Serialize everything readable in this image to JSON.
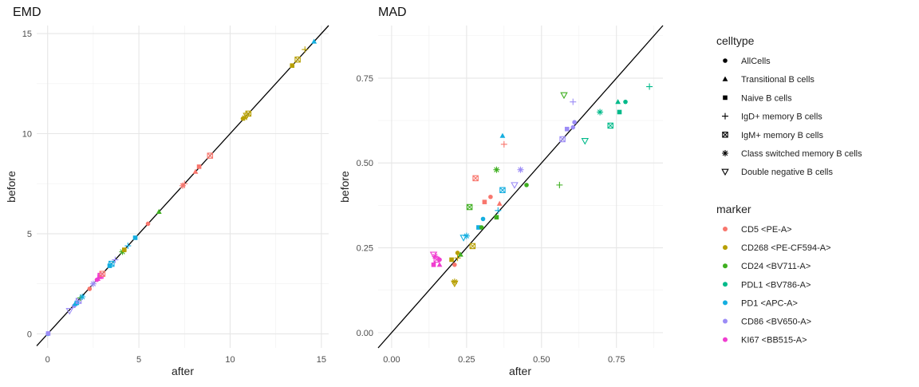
{
  "colors": {
    "CD5 <PE-A>": "#F8766D",
    "CD268 <PE-CF594-A>": "#B79F00",
    "CD24 <BV711-A>": "#3EAF1F",
    "PDL1 <BV786-A>": "#00BA8A",
    "PD1 <APC-A>": "#14AEE0",
    "CD86 <BV650-A>": "#9C8CF6",
    "KI67 <BB515-A>": "#F03ED0"
  },
  "legend": {
    "celltype_title": "celltype",
    "celltypes": [
      {
        "label": "AllCells",
        "shape": "circle"
      },
      {
        "label": "Transitional B cells",
        "shape": "triangle"
      },
      {
        "label": "Naive B cells",
        "shape": "square"
      },
      {
        "label": "IgD+ memory B cells",
        "shape": "plus"
      },
      {
        "label": "IgM+ memory B cells",
        "shape": "boxx"
      },
      {
        "label": "Class switched memory B cells",
        "shape": "asterisk"
      },
      {
        "label": "Double negative B cells",
        "shape": "invtriangle"
      }
    ],
    "marker_title": "marker",
    "markers": [
      "CD5 <PE-A>",
      "CD268 <PE-CF594-A>",
      "CD24 <BV711-A>",
      "PDL1 <BV786-A>",
      "PD1 <APC-A>",
      "CD86 <BV650-A>",
      "KI67 <BB515-A>"
    ]
  },
  "chart_data": [
    {
      "type": "scatter",
      "title": "EMD",
      "xlabel": "after",
      "ylabel": "before",
      "xlim": [
        -0.6,
        15.4
      ],
      "ylim": [
        -0.7,
        15.4
      ],
      "xticks": [
        0,
        5,
        10,
        15
      ],
      "yticks": [
        0,
        5,
        10,
        15
      ],
      "reference_line": "y = x",
      "grid": true,
      "points": [
        {
          "x": 0.02,
          "y": 0.0,
          "m": "PD1 <APC-A>",
          "c": "AllCells"
        },
        {
          "x": 0.03,
          "y": 0.02,
          "m": "CD86 <BV650-A>",
          "c": "Naive B cells"
        },
        {
          "x": 1.2,
          "y": 1.15,
          "m": "CD86 <BV650-A>",
          "c": "Double negative B cells"
        },
        {
          "x": 1.45,
          "y": 1.4,
          "m": "CD86 <BV650-A>",
          "c": "AllCells"
        },
        {
          "x": 1.5,
          "y": 1.5,
          "m": "PD1 <APC-A>",
          "c": "Transitional B cells"
        },
        {
          "x": 1.6,
          "y": 1.55,
          "m": "PD1 <APC-A>",
          "c": "Naive B cells"
        },
        {
          "x": 1.7,
          "y": 1.65,
          "m": "CD86 <BV650-A>",
          "c": "IgM+ memory B cells"
        },
        {
          "x": 1.8,
          "y": 1.8,
          "m": "CD24 <BV711-A>",
          "c": "IgD+ memory B cells"
        },
        {
          "x": 1.9,
          "y": 1.85,
          "m": "PD1 <APC-A>",
          "c": "Class switched memory B cells"
        },
        {
          "x": 2.3,
          "y": 2.25,
          "m": "CD5 <PE-A>",
          "c": "AllCells"
        },
        {
          "x": 2.5,
          "y": 2.5,
          "m": "CD86 <BV650-A>",
          "c": "Class switched memory B cells"
        },
        {
          "x": 2.7,
          "y": 2.7,
          "m": "KI67 <BB515-A>",
          "c": "AllCells"
        },
        {
          "x": 2.75,
          "y": 2.75,
          "m": "KI67 <BB515-A>",
          "c": "Transitional B cells"
        },
        {
          "x": 2.85,
          "y": 2.85,
          "m": "KI67 <BB515-A>",
          "c": "Naive B cells"
        },
        {
          "x": 2.9,
          "y": 2.9,
          "m": "KI67 <BB515-A>",
          "c": "IgM+ memory B cells"
        },
        {
          "x": 3.0,
          "y": 3.0,
          "m": "CD5 <PE-A>",
          "c": "IgM+ memory B cells"
        },
        {
          "x": 3.4,
          "y": 3.4,
          "m": "PD1 <APC-A>",
          "c": "Naive B cells"
        },
        {
          "x": 3.5,
          "y": 3.5,
          "m": "PD1 <APC-A>",
          "c": "IgM+ memory B cells"
        },
        {
          "x": 3.7,
          "y": 3.7,
          "m": "CD86 <BV650-A>",
          "c": "IgD+ memory B cells"
        },
        {
          "x": 4.1,
          "y": 4.1,
          "m": "CD24 <BV711-A>",
          "c": "Class switched memory B cells"
        },
        {
          "x": 4.2,
          "y": 4.2,
          "m": "CD268 <PE-CF594-A>",
          "c": "Naive B cells"
        },
        {
          "x": 4.4,
          "y": 4.4,
          "m": "PD1 <APC-A>",
          "c": "IgD+ memory B cells"
        },
        {
          "x": 4.8,
          "y": 4.8,
          "m": "PD1 <APC-A>",
          "c": "Naive B cells"
        },
        {
          "x": 5.5,
          "y": 5.5,
          "m": "CD5 <PE-A>",
          "c": "AllCells"
        },
        {
          "x": 6.1,
          "y": 6.1,
          "m": "CD24 <BV711-A>",
          "c": "Transitional B cells"
        },
        {
          "x": 7.4,
          "y": 7.4,
          "m": "CD5 <PE-A>",
          "c": "Class switched memory B cells"
        },
        {
          "x": 7.5,
          "y": 7.5,
          "m": "CD5 <PE-A>",
          "c": "IgD+ memory B cells"
        },
        {
          "x": 8.1,
          "y": 8.1,
          "m": "CD5 <PE-A>",
          "c": "Transitional B cells"
        },
        {
          "x": 8.3,
          "y": 8.35,
          "m": "CD5 <PE-A>",
          "c": "Naive B cells"
        },
        {
          "x": 8.9,
          "y": 8.9,
          "m": "CD5 <PE-A>",
          "c": "IgM+ memory B cells"
        },
        {
          "x": 10.7,
          "y": 10.75,
          "m": "CD268 <PE-CF594-A>",
          "c": "AllCells"
        },
        {
          "x": 10.8,
          "y": 10.8,
          "m": "CD268 <PE-CF594-A>",
          "c": "Class switched memory B cells"
        },
        {
          "x": 10.9,
          "y": 10.9,
          "m": "CD268 <PE-CF594-A>",
          "c": "Double negative B cells"
        },
        {
          "x": 11.0,
          "y": 11.0,
          "m": "CD268 <PE-CF594-A>",
          "c": "IgM+ memory B cells"
        },
        {
          "x": 13.4,
          "y": 13.4,
          "m": "CD268 <PE-CF594-A>",
          "c": "Naive B cells"
        },
        {
          "x": 13.7,
          "y": 13.7,
          "m": "CD268 <PE-CF594-A>",
          "c": "IgM+ memory B cells"
        },
        {
          "x": 14.1,
          "y": 14.2,
          "m": "CD268 <PE-CF594-A>",
          "c": "IgD+ memory B cells"
        },
        {
          "x": 14.6,
          "y": 14.6,
          "m": "PD1 <APC-A>",
          "c": "Transitional B cells"
        }
      ]
    },
    {
      "type": "scatter",
      "title": "MAD",
      "xlabel": "after",
      "ylabel": "before",
      "xlim": [
        -0.045,
        0.905
      ],
      "ylim": [
        -0.045,
        0.905
      ],
      "xticks": [
        0.0,
        0.25,
        0.5,
        0.75
      ],
      "xtick_labels": [
        "0.00",
        "0.25",
        "0.50",
        "0.75"
      ],
      "yticks": [
        0.0,
        0.25,
        0.5,
        0.75
      ],
      "ytick_labels": [
        "0.00",
        "0.25",
        "0.50",
        "0.75"
      ],
      "reference_line": "y = x",
      "grid": true,
      "points": [
        {
          "x": 0.14,
          "y": 0.2,
          "m": "KI67 <BB515-A>",
          "c": "Naive B cells"
        },
        {
          "x": 0.14,
          "y": 0.23,
          "m": "KI67 <BB515-A>",
          "c": "Double negative B cells"
        },
        {
          "x": 0.15,
          "y": 0.215,
          "m": "KI67 <BB515-A>",
          "c": "IgM+ memory B cells"
        },
        {
          "x": 0.16,
          "y": 0.2,
          "m": "KI67 <BB515-A>",
          "c": "Transitional B cells"
        },
        {
          "x": 0.16,
          "y": 0.215,
          "m": "KI67 <BB515-A>",
          "c": "AllCells"
        },
        {
          "x": 0.145,
          "y": 0.225,
          "m": "KI67 <BB515-A>",
          "c": "Class switched memory B cells"
        },
        {
          "x": 0.2,
          "y": 0.215,
          "m": "CD268 <PE-CF594-A>",
          "c": "Naive B cells"
        },
        {
          "x": 0.21,
          "y": 0.15,
          "m": "CD268 <PE-CF594-A>",
          "c": "Class switched memory B cells"
        },
        {
          "x": 0.21,
          "y": 0.145,
          "m": "CD268 <PE-CF594-A>",
          "c": "Double negative B cells"
        },
        {
          "x": 0.21,
          "y": 0.2,
          "m": "CD5 <PE-A>",
          "c": "AllCells"
        },
        {
          "x": 0.22,
          "y": 0.235,
          "m": "CD268 <PE-CF594-A>",
          "c": "AllCells"
        },
        {
          "x": 0.22,
          "y": 0.22,
          "m": "CD268 <PE-CF594-A>",
          "c": "IgD+ memory B cells"
        },
        {
          "x": 0.23,
          "y": 0.23,
          "m": "CD24 <BV711-A>",
          "c": "Transitional B cells"
        },
        {
          "x": 0.24,
          "y": 0.28,
          "m": "PD1 <APC-A>",
          "c": "Double negative B cells"
        },
        {
          "x": 0.25,
          "y": 0.285,
          "m": "PD1 <APC-A>",
          "c": "Class switched memory B cells"
        },
        {
          "x": 0.26,
          "y": 0.37,
          "m": "CD24 <BV711-A>",
          "c": "IgM+ memory B cells"
        },
        {
          "x": 0.27,
          "y": 0.255,
          "m": "CD268 <PE-CF594-A>",
          "c": "IgM+ memory B cells"
        },
        {
          "x": 0.28,
          "y": 0.455,
          "m": "CD5 <PE-A>",
          "c": "IgM+ memory B cells"
        },
        {
          "x": 0.29,
          "y": 0.31,
          "m": "PD1 <APC-A>",
          "c": "Naive B cells"
        },
        {
          "x": 0.3,
          "y": 0.31,
          "m": "CD24 <BV711-A>",
          "c": "AllCells"
        },
        {
          "x": 0.305,
          "y": 0.335,
          "m": "PD1 <APC-A>",
          "c": "AllCells"
        },
        {
          "x": 0.31,
          "y": 0.385,
          "m": "CD5 <PE-A>",
          "c": "Naive B cells"
        },
        {
          "x": 0.33,
          "y": 0.4,
          "m": "CD5 <PE-A>",
          "c": "AllCells"
        },
        {
          "x": 0.35,
          "y": 0.34,
          "m": "CD24 <BV711-A>",
          "c": "Naive B cells"
        },
        {
          "x": 0.35,
          "y": 0.48,
          "m": "CD24 <BV711-A>",
          "c": "Class switched memory B cells"
        },
        {
          "x": 0.355,
          "y": 0.36,
          "m": "PD1 <APC-A>",
          "c": "IgD+ memory B cells"
        },
        {
          "x": 0.36,
          "y": 0.38,
          "m": "CD5 <PE-A>",
          "c": "Transitional B cells"
        },
        {
          "x": 0.37,
          "y": 0.42,
          "m": "PD1 <APC-A>",
          "c": "IgM+ memory B cells"
        },
        {
          "x": 0.37,
          "y": 0.58,
          "m": "PD1 <APC-A>",
          "c": "Transitional B cells"
        },
        {
          "x": 0.375,
          "y": 0.555,
          "m": "CD5 <PE-A>",
          "c": "IgD+ memory B cells"
        },
        {
          "x": 0.41,
          "y": 0.435,
          "m": "CD86 <BV650-A>",
          "c": "Double negative B cells"
        },
        {
          "x": 0.43,
          "y": 0.48,
          "m": "CD86 <BV650-A>",
          "c": "Class switched memory B cells"
        },
        {
          "x": 0.45,
          "y": 0.435,
          "m": "CD24 <BV711-A>",
          "c": "AllCells"
        },
        {
          "x": 0.56,
          "y": 0.435,
          "m": "CD24 <BV711-A>",
          "c": "IgD+ memory B cells"
        },
        {
          "x": 0.57,
          "y": 0.57,
          "m": "CD86 <BV650-A>",
          "c": "IgM+ memory B cells"
        },
        {
          "x": 0.575,
          "y": 0.7,
          "m": "CD24 <BV711-A>",
          "c": "Double negative B cells"
        },
        {
          "x": 0.585,
          "y": 0.6,
          "m": "CD86 <BV650-A>",
          "c": "Naive B cells"
        },
        {
          "x": 0.605,
          "y": 0.68,
          "m": "CD86 <BV650-A>",
          "c": "IgD+ memory B cells"
        },
        {
          "x": 0.605,
          "y": 0.605,
          "m": "CD86 <BV650-A>",
          "c": "AllCells"
        },
        {
          "x": 0.61,
          "y": 0.62,
          "m": "CD86 <BV650-A>",
          "c": "AllCells"
        },
        {
          "x": 0.645,
          "y": 0.565,
          "m": "PDL1 <BV786-A>",
          "c": "Double negative B cells"
        },
        {
          "x": 0.695,
          "y": 0.65,
          "m": "PDL1 <BV786-A>",
          "c": "Class switched memory B cells"
        },
        {
          "x": 0.73,
          "y": 0.61,
          "m": "PDL1 <BV786-A>",
          "c": "IgM+ memory B cells"
        },
        {
          "x": 0.755,
          "y": 0.68,
          "m": "PDL1 <BV786-A>",
          "c": "Transitional B cells"
        },
        {
          "x": 0.76,
          "y": 0.65,
          "m": "PDL1 <BV786-A>",
          "c": "Naive B cells"
        },
        {
          "x": 0.78,
          "y": 0.68,
          "m": "PDL1 <BV786-A>",
          "c": "AllCells"
        },
        {
          "x": 0.86,
          "y": 0.725,
          "m": "PDL1 <BV786-A>",
          "c": "IgD+ memory B cells"
        }
      ]
    }
  ]
}
